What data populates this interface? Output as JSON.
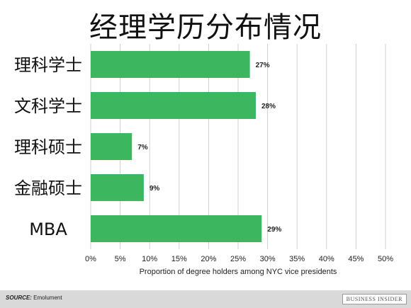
{
  "title": "经理学历分布情况",
  "chart_data": {
    "type": "bar",
    "orientation": "horizontal",
    "categories": [
      "理科学士",
      "文科学士",
      "理科硕士",
      "金融硕士",
      "MBA"
    ],
    "values": [
      27,
      28,
      7,
      9,
      29
    ],
    "data_labels": [
      "27%",
      "28%",
      "7%",
      "9%",
      "29%"
    ],
    "xlabel": "Proportion of degree holders among NYC vice presidents",
    "xlim": [
      0,
      50
    ],
    "x_ticks": [
      "0%",
      "5%",
      "10%",
      "15%",
      "20%",
      "25%",
      "30%",
      "35%",
      "40%",
      "45%",
      "50%"
    ],
    "grid": true,
    "bar_color": "#3cb65f"
  },
  "footer": {
    "source_label": "SOURCE:",
    "source_text": " Emolument",
    "brand": "BUSINESS INSIDER"
  }
}
